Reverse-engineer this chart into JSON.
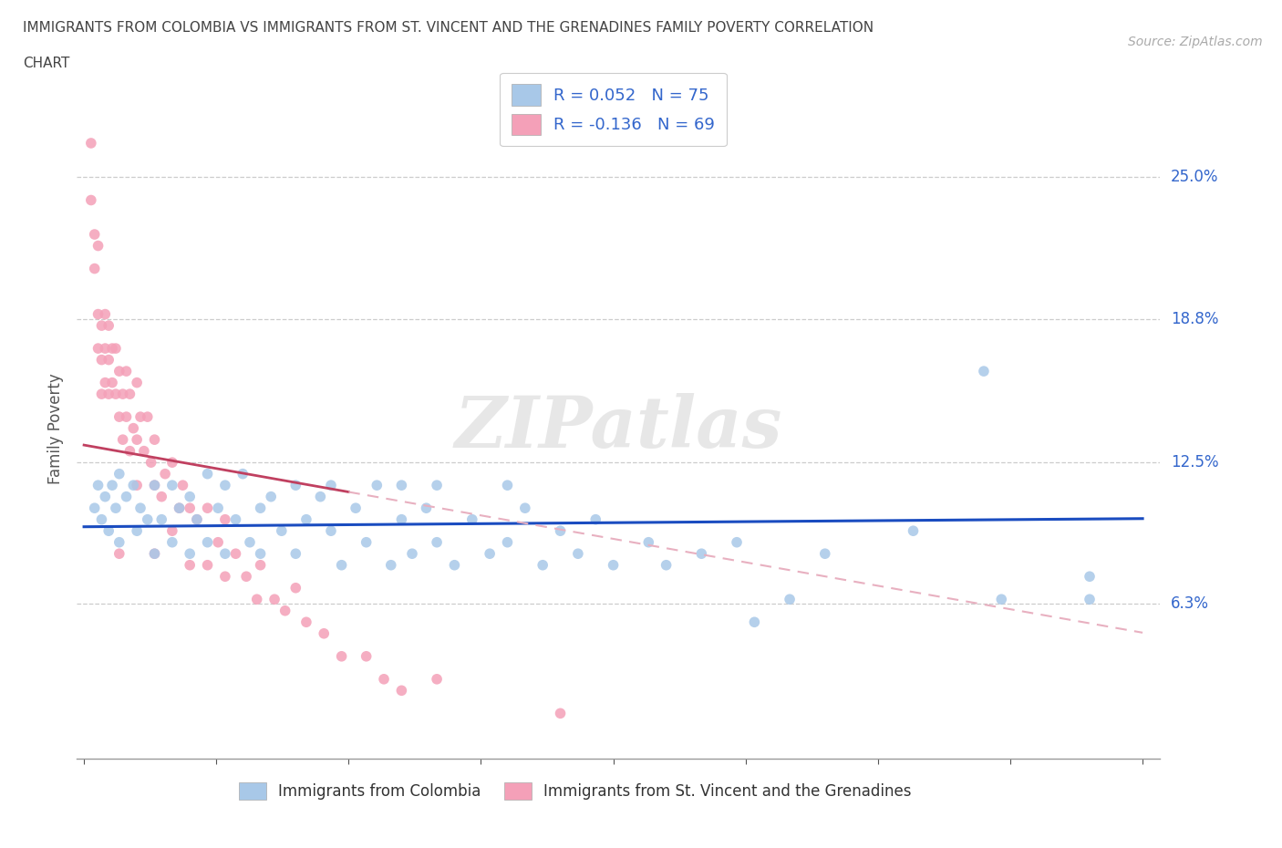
{
  "title_line1": "IMMIGRANTS FROM COLOMBIA VS IMMIGRANTS FROM ST. VINCENT AND THE GRENADINES FAMILY POVERTY CORRELATION",
  "title_line2": "CHART",
  "source_text": "Source: ZipAtlas.com",
  "ylabel": "Family Poverty",
  "xlim_min": -0.002,
  "xlim_max": 0.305,
  "ylim_min": -0.005,
  "ylim_max": 0.285,
  "colombia_color": "#A8C8E8",
  "svg_color": "#F4A0B8",
  "trend_colombia_color": "#1A4CC0",
  "trend_svg_color": "#C04060",
  "trend_svg_dash_color": "#E8B0C0",
  "r_colombia": 0.052,
  "n_colombia": 75,
  "r_svg": -0.136,
  "n_svg": 69,
  "legend_label_colombia": "Immigrants from Colombia",
  "legend_label_svg": "Immigrants from St. Vincent and the Grenadines",
  "watermark": "ZIPatlas",
  "y_tick_positions": [
    0.25,
    0.188,
    0.125,
    0.063
  ],
  "y_tick_labels": [
    "25.0%",
    "18.8%",
    "12.5%",
    "6.3%"
  ],
  "x_minor_ticks": [
    0.0,
    0.0375,
    0.075,
    0.1125,
    0.15,
    0.1875,
    0.225,
    0.2625,
    0.3
  ],
  "colombia_x": [
    0.003,
    0.004,
    0.005,
    0.006,
    0.007,
    0.008,
    0.009,
    0.01,
    0.01,
    0.012,
    0.014,
    0.015,
    0.016,
    0.018,
    0.02,
    0.02,
    0.022,
    0.025,
    0.025,
    0.027,
    0.03,
    0.03,
    0.032,
    0.035,
    0.035,
    0.038,
    0.04,
    0.04,
    0.043,
    0.045,
    0.047,
    0.05,
    0.05,
    0.053,
    0.056,
    0.06,
    0.06,
    0.063,
    0.067,
    0.07,
    0.07,
    0.073,
    0.077,
    0.08,
    0.083,
    0.087,
    0.09,
    0.09,
    0.093,
    0.097,
    0.1,
    0.1,
    0.105,
    0.11,
    0.115,
    0.12,
    0.12,
    0.125,
    0.13,
    0.135,
    0.14,
    0.145,
    0.15,
    0.16,
    0.165,
    0.175,
    0.185,
    0.19,
    0.2,
    0.21,
    0.235,
    0.255,
    0.26,
    0.285,
    0.285
  ],
  "colombia_y": [
    0.105,
    0.115,
    0.1,
    0.11,
    0.095,
    0.115,
    0.105,
    0.12,
    0.09,
    0.11,
    0.115,
    0.095,
    0.105,
    0.1,
    0.115,
    0.085,
    0.1,
    0.115,
    0.09,
    0.105,
    0.11,
    0.085,
    0.1,
    0.12,
    0.09,
    0.105,
    0.115,
    0.085,
    0.1,
    0.12,
    0.09,
    0.105,
    0.085,
    0.11,
    0.095,
    0.115,
    0.085,
    0.1,
    0.11,
    0.095,
    0.115,
    0.08,
    0.105,
    0.09,
    0.115,
    0.08,
    0.1,
    0.115,
    0.085,
    0.105,
    0.09,
    0.115,
    0.08,
    0.1,
    0.085,
    0.115,
    0.09,
    0.105,
    0.08,
    0.095,
    0.085,
    0.1,
    0.08,
    0.09,
    0.08,
    0.085,
    0.09,
    0.055,
    0.065,
    0.085,
    0.095,
    0.165,
    0.065,
    0.075,
    0.065
  ],
  "svg_x": [
    0.002,
    0.002,
    0.003,
    0.003,
    0.004,
    0.004,
    0.004,
    0.005,
    0.005,
    0.005,
    0.006,
    0.006,
    0.006,
    0.007,
    0.007,
    0.007,
    0.008,
    0.008,
    0.009,
    0.009,
    0.01,
    0.01,
    0.01,
    0.011,
    0.011,
    0.012,
    0.012,
    0.013,
    0.013,
    0.014,
    0.015,
    0.015,
    0.015,
    0.016,
    0.017,
    0.018,
    0.019,
    0.02,
    0.02,
    0.02,
    0.022,
    0.023,
    0.025,
    0.025,
    0.027,
    0.028,
    0.03,
    0.03,
    0.032,
    0.035,
    0.035,
    0.038,
    0.04,
    0.04,
    0.043,
    0.046,
    0.049,
    0.05,
    0.054,
    0.057,
    0.06,
    0.063,
    0.068,
    0.073,
    0.08,
    0.085,
    0.09,
    0.1,
    0.135
  ],
  "svg_y": [
    0.265,
    0.24,
    0.225,
    0.21,
    0.19,
    0.175,
    0.22,
    0.185,
    0.17,
    0.155,
    0.19,
    0.175,
    0.16,
    0.185,
    0.17,
    0.155,
    0.175,
    0.16,
    0.175,
    0.155,
    0.165,
    0.145,
    0.085,
    0.155,
    0.135,
    0.165,
    0.145,
    0.155,
    0.13,
    0.14,
    0.16,
    0.135,
    0.115,
    0.145,
    0.13,
    0.145,
    0.125,
    0.135,
    0.115,
    0.085,
    0.11,
    0.12,
    0.125,
    0.095,
    0.105,
    0.115,
    0.105,
    0.08,
    0.1,
    0.105,
    0.08,
    0.09,
    0.1,
    0.075,
    0.085,
    0.075,
    0.065,
    0.08,
    0.065,
    0.06,
    0.07,
    0.055,
    0.05,
    0.04,
    0.04,
    0.03,
    0.025,
    0.03,
    0.015
  ]
}
